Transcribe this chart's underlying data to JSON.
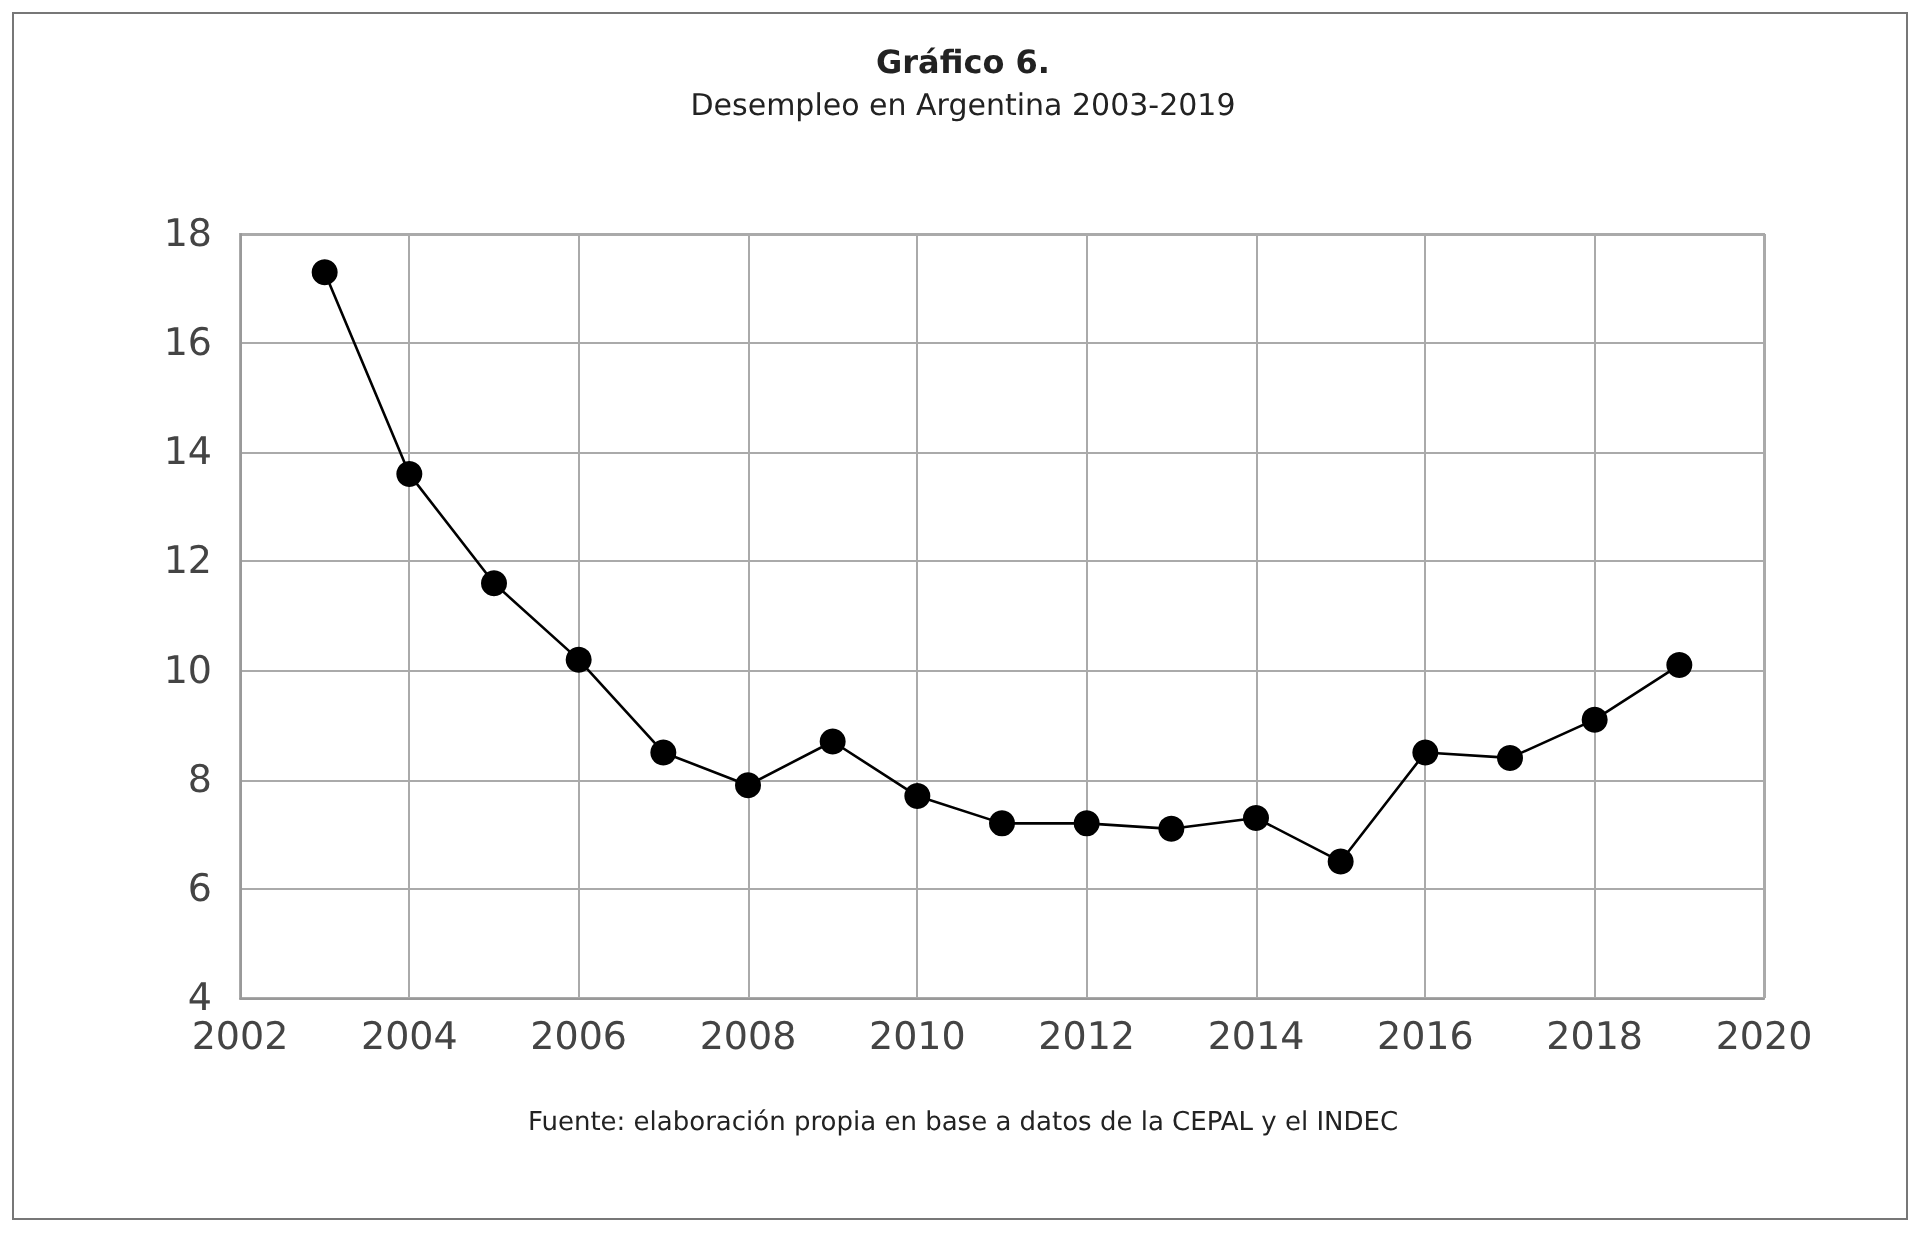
{
  "chart_data": {
    "type": "line",
    "title": "Gráfico 6.",
    "subtitle": "Desempleo en Argentina 2003-2019",
    "annotations": [
      "Fuente: elaboración propia en base a datos de la CEPAL y el INDEC"
    ],
    "x": [
      2003,
      2004,
      2005,
      2006,
      2007,
      2008,
      2009,
      2010,
      2011,
      2012,
      2013,
      2014,
      2015,
      2016,
      2017,
      2018,
      2019
    ],
    "series": [
      {
        "color": "#000000",
        "values": [
          17.3,
          13.6,
          11.6,
          10.2,
          8.5,
          7.9,
          8.7,
          7.7,
          7.2,
          7.2,
          7.1,
          7.3,
          6.5,
          8.5,
          8.4,
          9.1,
          10.1
        ]
      }
    ],
    "xlim": [
      2002,
      2020
    ],
    "xticks": [
      2002,
      2004,
      2006,
      2008,
      2010,
      2012,
      2014,
      2016,
      2018,
      2020
    ],
    "ylim": [
      4,
      18
    ],
    "yticks": [
      4,
      6,
      8,
      10,
      12,
      14,
      16,
      18
    ],
    "grid": true,
    "marker": "circle",
    "line_style": "solid"
  }
}
